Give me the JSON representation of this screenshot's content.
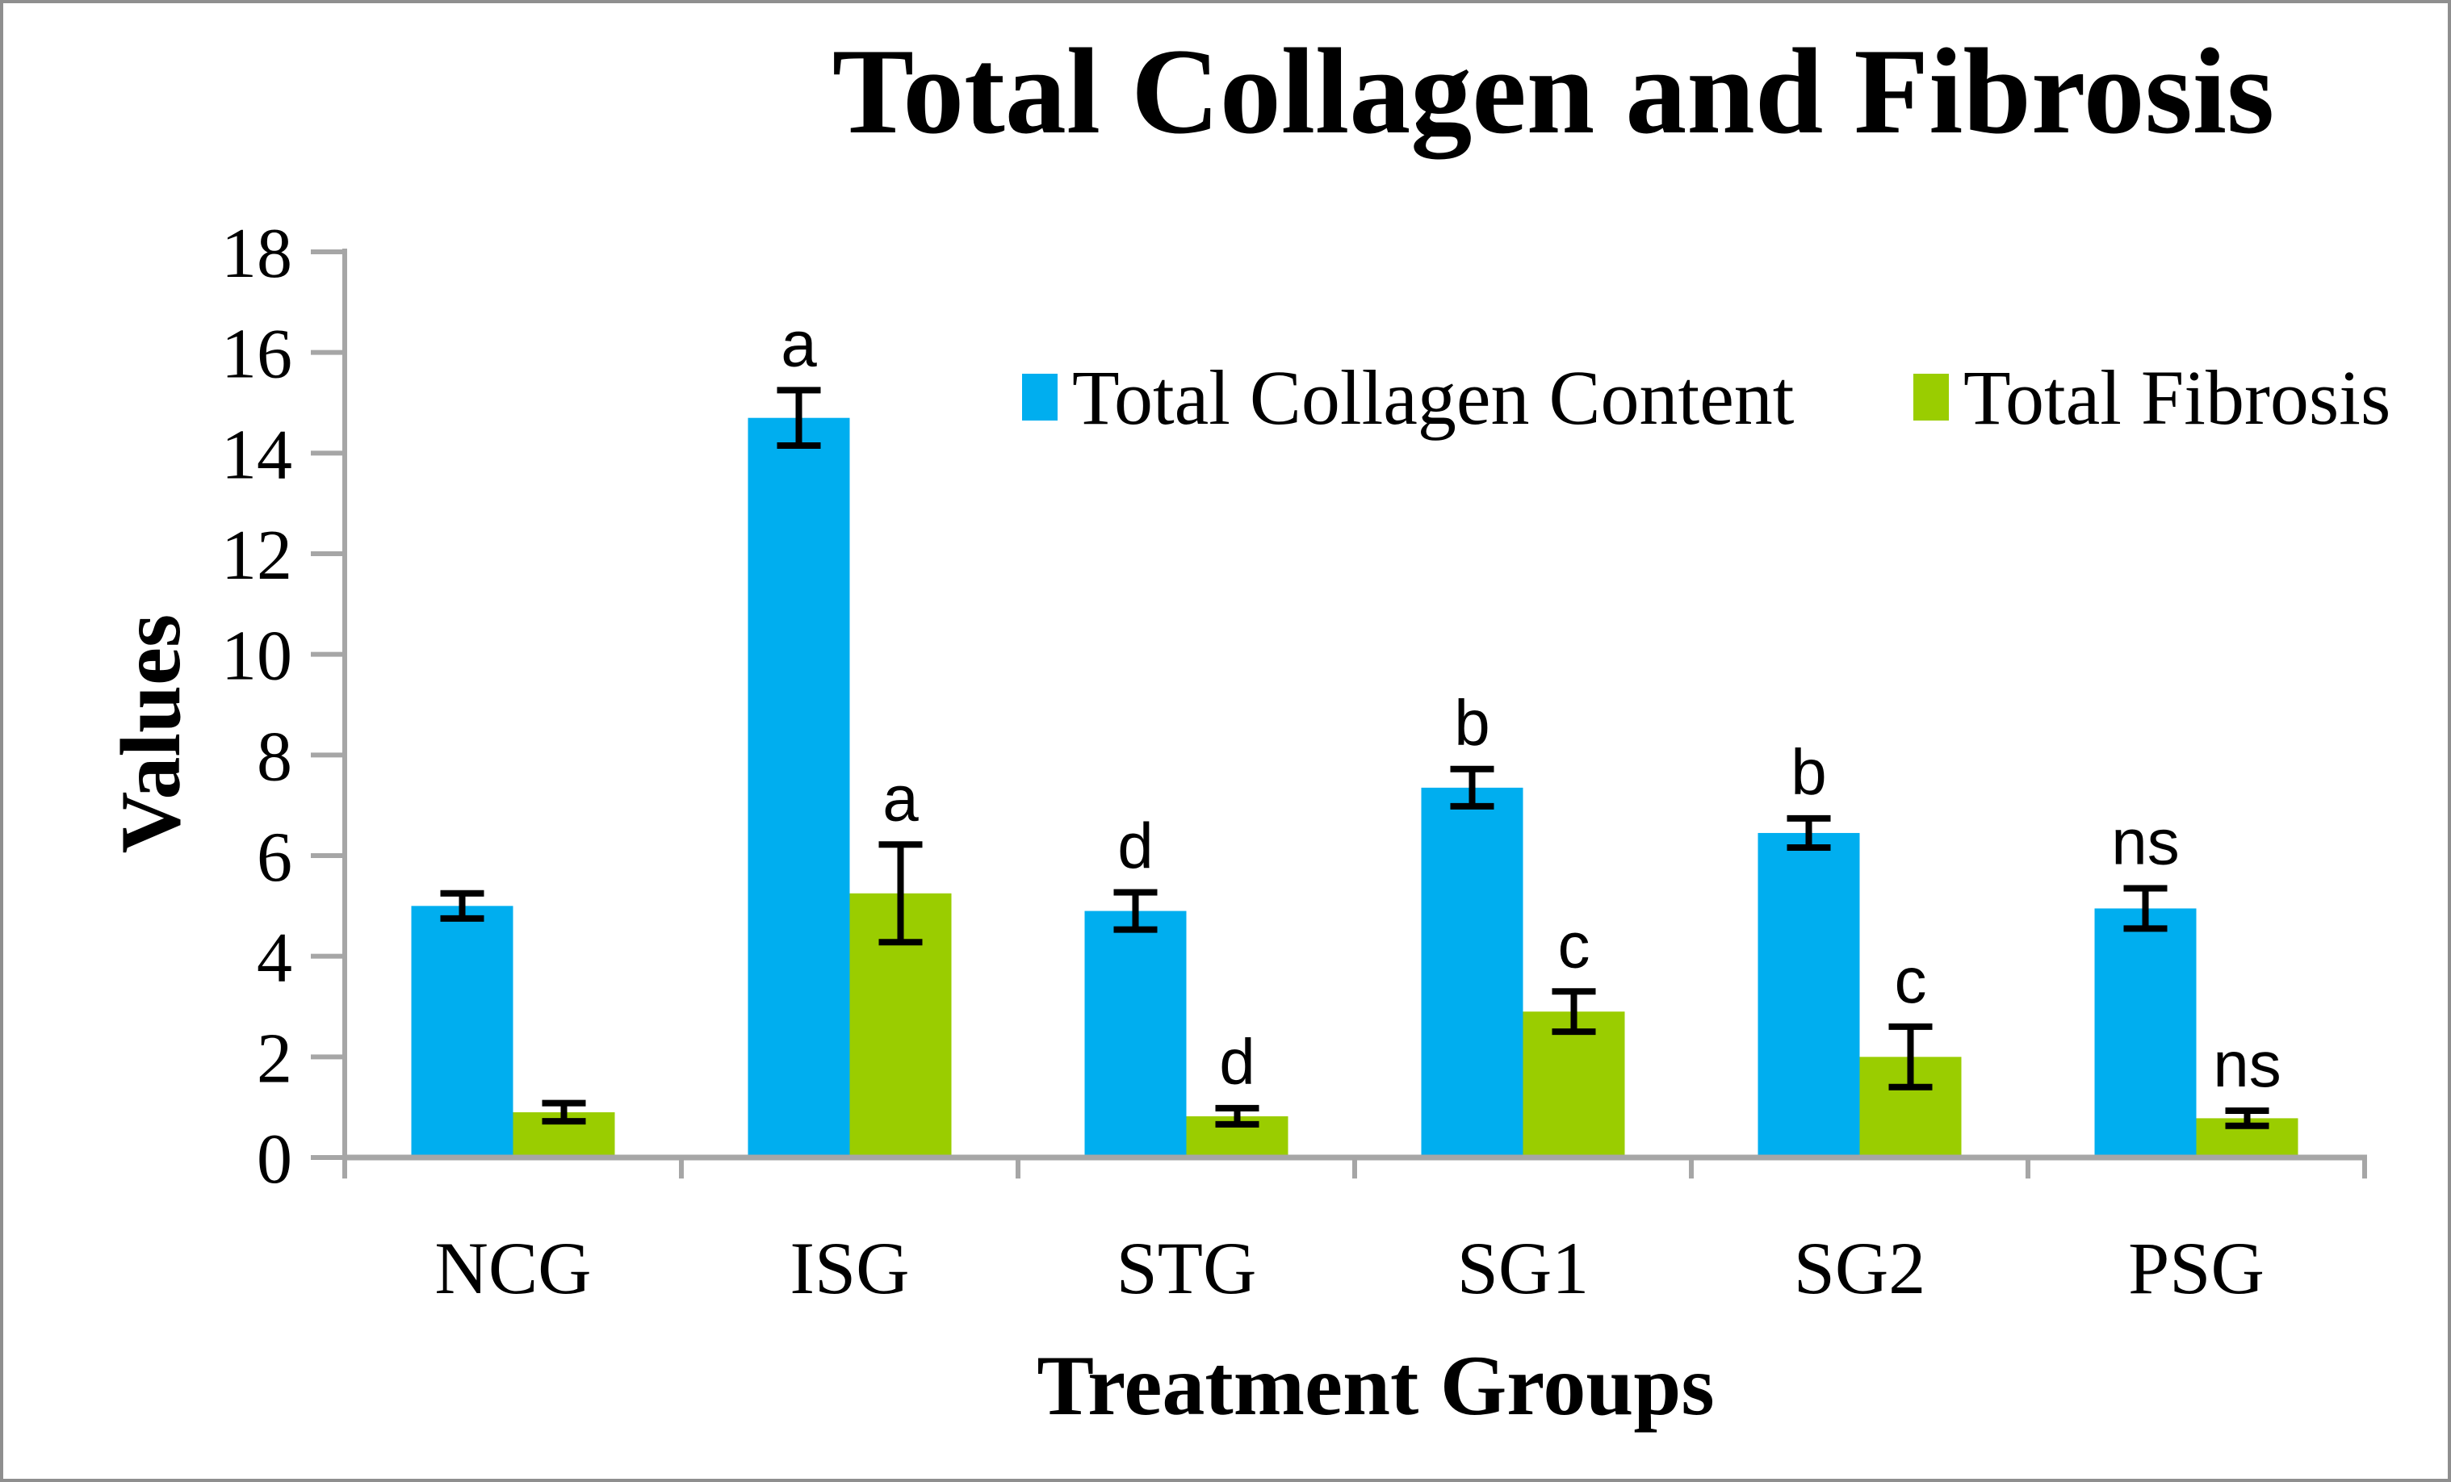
{
  "figure": {
    "title": "Total Collagen and Fibrosis",
    "y_axis_title": "Values",
    "x_axis_title": "Treatment Groups",
    "axis_color": "#A6A6A6",
    "error_bar_color": "#000000",
    "background_color": "#FFFFFF",
    "border_color": "#8F8F8F"
  },
  "legend": [
    {
      "label": "Total Collagen Content",
      "color": "#00AEEF"
    },
    {
      "label": "Total Fibrosis",
      "color": "#9ACD00"
    }
  ],
  "chart_data": {
    "type": "bar",
    "title": "Total Collagen and Fibrosis",
    "xlabel": "Treatment Groups",
    "ylabel": "Values",
    "ylim": [
      0,
      18
    ],
    "ytick_step": 2,
    "grid": false,
    "legend_position": "top-inside",
    "categories": [
      "NCG",
      "ISG",
      "STG",
      "SG1",
      "SG2",
      "PSG"
    ],
    "series": [
      {
        "name": "Total Collagen Content",
        "color": "#00AEEF",
        "values": [
          5.0,
          14.7,
          4.9,
          7.35,
          6.45,
          4.95
        ],
        "errors": [
          0.25,
          0.55,
          0.37,
          0.37,
          0.29,
          0.4
        ],
        "sig_labels": [
          "",
          "a",
          "d",
          "b",
          "b",
          "ns"
        ]
      },
      {
        "name": "Total Fibrosis",
        "color": "#9ACD00",
        "values": [
          0.9,
          5.25,
          0.82,
          2.9,
          2.0,
          0.78
        ],
        "errors": [
          0.18,
          0.97,
          0.16,
          0.4,
          0.6,
          0.15
        ],
        "sig_labels": [
          "",
          "a",
          "d",
          "c",
          "c",
          "ns"
        ]
      }
    ]
  }
}
